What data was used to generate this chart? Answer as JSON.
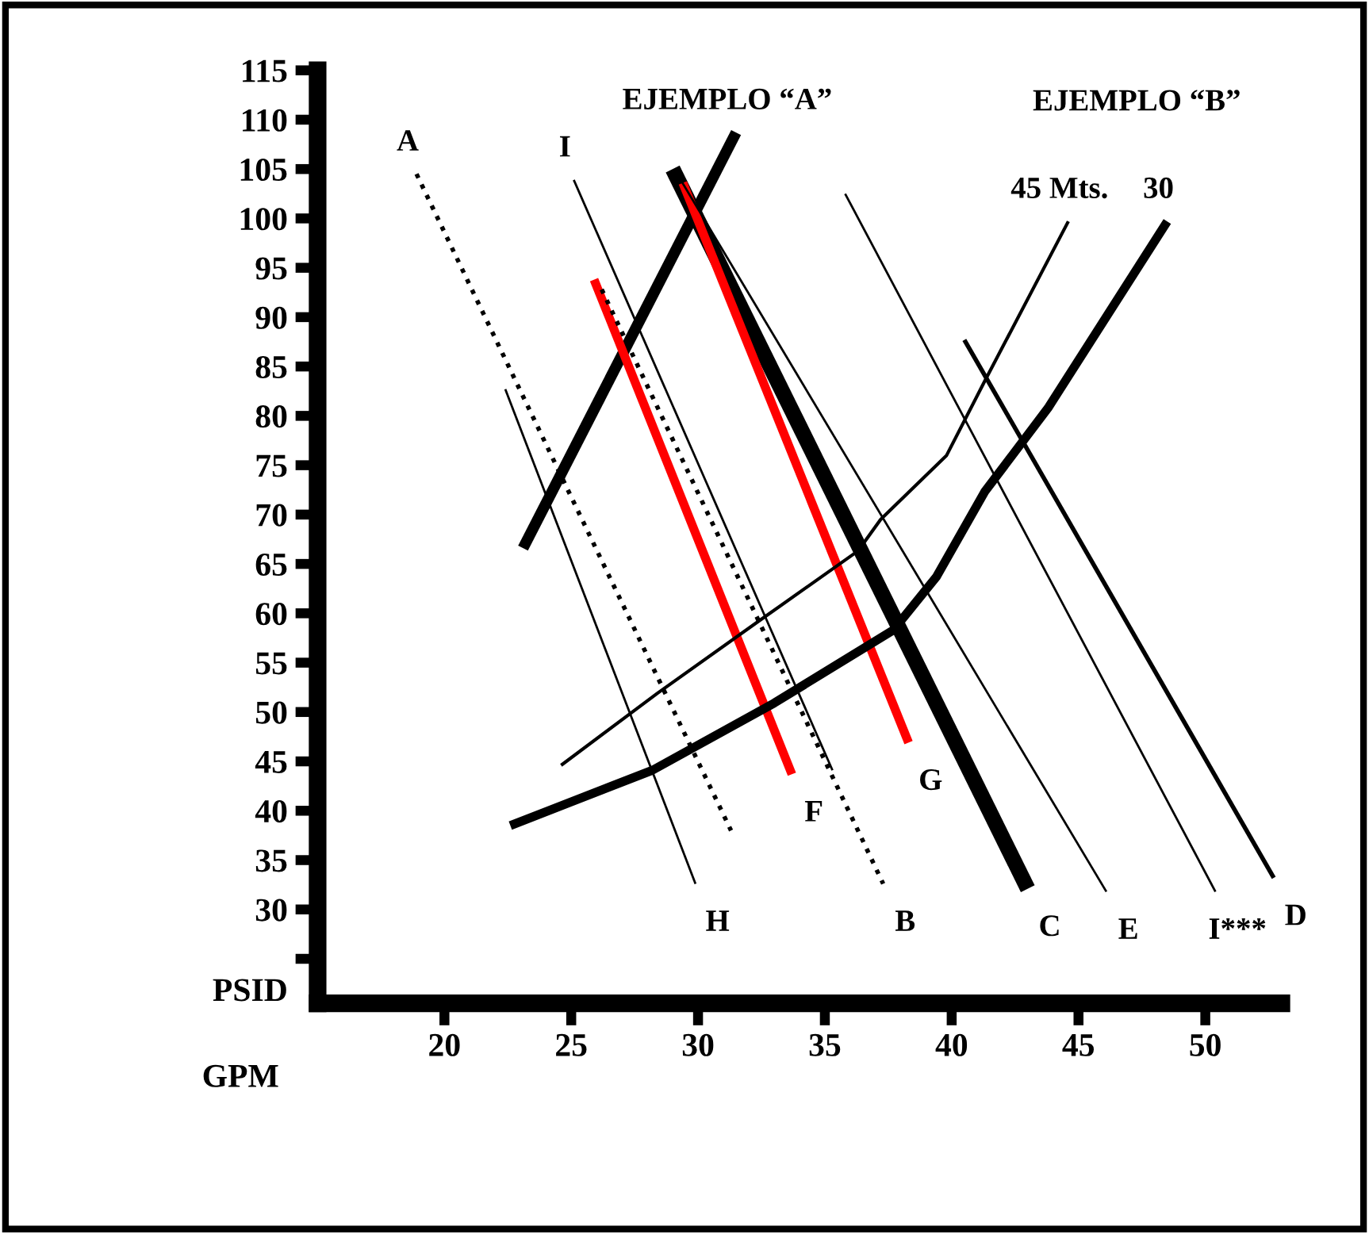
{
  "chart_data": {
    "type": "line",
    "xlabel": "GPM",
    "ylabel": "PSID",
    "xlim": [
      15,
      53
    ],
    "ylim": [
      20.5,
      115
    ],
    "xticks": [
      20,
      25,
      30,
      35,
      40,
      45,
      50
    ],
    "yticks": [
      {
        "value": 25,
        "label": null
      },
      30,
      35,
      40,
      45,
      50,
      55,
      60,
      65,
      70,
      75,
      80,
      85,
      90,
      95,
      100,
      105,
      110,
      115
    ],
    "grid": false,
    "legend": false,
    "marker": "none",
    "series": [
      {
        "name": "EJEMPLO “A”",
        "color": "#000000",
        "x": [
          23.1,
          31.5
        ],
        "values": [
          66.6,
          108.7
        ]
      },
      {
        "name": "C",
        "color": "#000000",
        "x": [
          29.0,
          43.0
        ],
        "values": [
          105.0,
          32.1
        ]
      },
      {
        "name": "G",
        "color": "#ff0000",
        "x": [
          29.4,
          38.3
        ],
        "values": [
          103.6,
          46.9
        ]
      },
      {
        "name": "F",
        "color": "#ff0000",
        "x": [
          25.9,
          33.7
        ],
        "values": [
          93.8,
          43.7
        ]
      },
      {
        "name": "A",
        "color": "#000000",
        "line_style": "dotted",
        "x": [
          18.9,
          31.3
        ],
        "values": [
          104.5,
          38.0
        ]
      },
      {
        "name": "B",
        "color": "#000000",
        "line_style": "dotted",
        "x": [
          26.2,
          37.3
        ],
        "values": [
          92.8,
          32.6
        ]
      },
      {
        "name": "I",
        "color": "#000000",
        "x": [
          25.1,
          35.3
        ],
        "values": [
          103.9,
          44.1
        ]
      },
      {
        "name": "H",
        "color": "#000000",
        "x": [
          22.4,
          29.9
        ],
        "values": [
          82.7,
          32.6
        ]
      },
      {
        "name": "E",
        "color": "#000000",
        "x": [
          29.2,
          46.1
        ],
        "values": [
          104.4,
          31.8
        ]
      },
      {
        "name": "I***",
        "color": "#000000",
        "x": [
          35.8,
          50.4
        ],
        "values": [
          102.5,
          31.8
        ]
      },
      {
        "name": "D",
        "color": "#000000",
        "x": [
          40.5,
          52.7
        ],
        "values": [
          87.7,
          33.2
        ]
      },
      {
        "name": "45 Mts.",
        "color": "#000000",
        "x": [
          24.6,
          28.4,
          32.5,
          36.3,
          37.2,
          39.8,
          41.3,
          44.6
        ],
        "values": [
          44.6,
          51.9,
          59.4,
          66.3,
          69.5,
          76.0,
          83.5,
          99.7
        ]
      },
      {
        "name": "30",
        "color": "#000000",
        "x": [
          22.6,
          28.2,
          33.0,
          37.7,
          39.4,
          41.3,
          43.8,
          48.5
        ],
        "values": [
          38.5,
          44.1,
          50.9,
          58.3,
          63.7,
          72.3,
          80.8,
          99.7
        ]
      }
    ],
    "annotations": [
      "EJEMPLO “B”"
    ]
  }
}
